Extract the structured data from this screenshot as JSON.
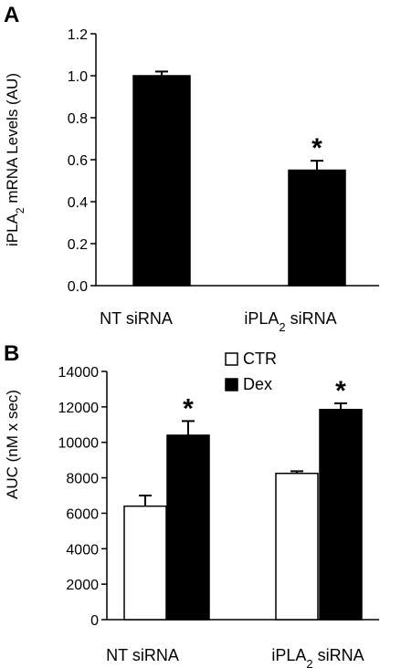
{
  "chart_data": [
    {
      "panel_label": "A",
      "type": "bar",
      "ylabel_main": "iPLA",
      "ylabel_sub": "2",
      "ylabel_rest": " mRNA Levels (AU)",
      "ylim": [
        0,
        1.2
      ],
      "yticks": [
        "0.0",
        "0.2",
        "0.4",
        "0.6",
        "0.8",
        "1.0",
        "1.2"
      ],
      "categories": [
        {
          "main": "NT siRNA",
          "sub": "",
          "rest": ""
        },
        {
          "main": "iPLA",
          "sub": "2",
          "rest": " siRNA"
        }
      ],
      "values": [
        1.0,
        0.55
      ],
      "errors": [
        0.02,
        0.045
      ],
      "significance": [
        "",
        "*"
      ],
      "bar_color": "#000000"
    },
    {
      "panel_label": "B",
      "type": "bar",
      "ylabel": "AUC (nM x sec)",
      "ylim": [
        0,
        14000
      ],
      "yticks": [
        "0",
        "2000",
        "4000",
        "6000",
        "8000",
        "10000",
        "12000",
        "14000"
      ],
      "categories": [
        {
          "main": "NT siRNA",
          "sub": "",
          "rest": ""
        },
        {
          "main": "iPLA",
          "sub": "2",
          "rest": " siRNA"
        }
      ],
      "series": [
        {
          "name": "CTR",
          "values": [
            6400,
            8250
          ],
          "errors": [
            600,
            120
          ],
          "significance": [
            "",
            ""
          ],
          "color": "#ffffff"
        },
        {
          "name": "Dex",
          "values": [
            10400,
            11850
          ],
          "errors": [
            800,
            350
          ],
          "significance": [
            "*",
            "*"
          ],
          "color": "#000000"
        }
      ],
      "legend_position": "top-left"
    }
  ]
}
